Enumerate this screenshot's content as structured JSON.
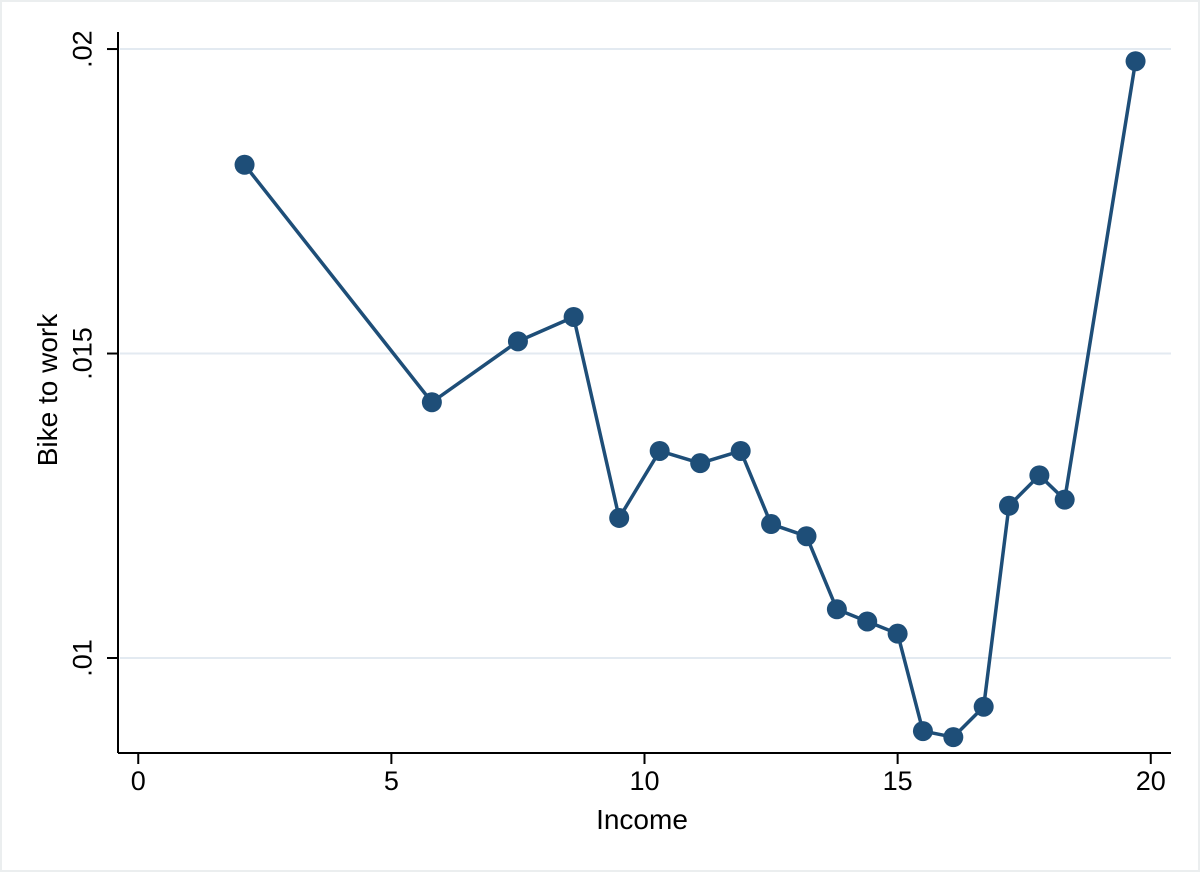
{
  "chart_data": {
    "type": "line",
    "title": "",
    "xlabel": "Income",
    "ylabel": "Bike to work",
    "xlim": [
      -0.4,
      20.4
    ],
    "ylim": [
      0.00844,
      0.02028
    ],
    "grid": "horizontal-gridlines-only",
    "legend": "none",
    "x_ticks": [
      {
        "value": 0,
        "label": "0"
      },
      {
        "value": 5,
        "label": "5"
      },
      {
        "value": 10,
        "label": "10"
      },
      {
        "value": 15,
        "label": "15"
      },
      {
        "value": 20,
        "label": "20"
      }
    ],
    "y_ticks": [
      {
        "value": 0.01,
        "label": ".01"
      },
      {
        "value": 0.015,
        "label": ".015"
      },
      {
        "value": 0.02,
        "label": ".02"
      }
    ],
    "series": [
      {
        "name": "Bike to work",
        "marker": "circle",
        "x": [
          2.1,
          5.8,
          7.5,
          8.6,
          9.5,
          10.3,
          11.1,
          11.9,
          12.5,
          13.2,
          13.8,
          14.4,
          15.0,
          15.5,
          16.1,
          16.7,
          17.2,
          17.8,
          18.3,
          19.7
        ],
        "y": [
          0.0181,
          0.0142,
          0.0152,
          0.0156,
          0.0123,
          0.0134,
          0.0132,
          0.0134,
          0.0122,
          0.012,
          0.0108,
          0.0106,
          0.0104,
          0.0088,
          0.0087,
          0.0092,
          0.0125,
          0.013,
          0.0126,
          0.0198
        ]
      }
    ],
    "colors": {
      "line": "#1e4e78",
      "marker": "#1e4e78",
      "grid": "#e3eaf1",
      "axis": "#000000",
      "background": "#ffffff",
      "frame": "#ebeeef"
    }
  }
}
